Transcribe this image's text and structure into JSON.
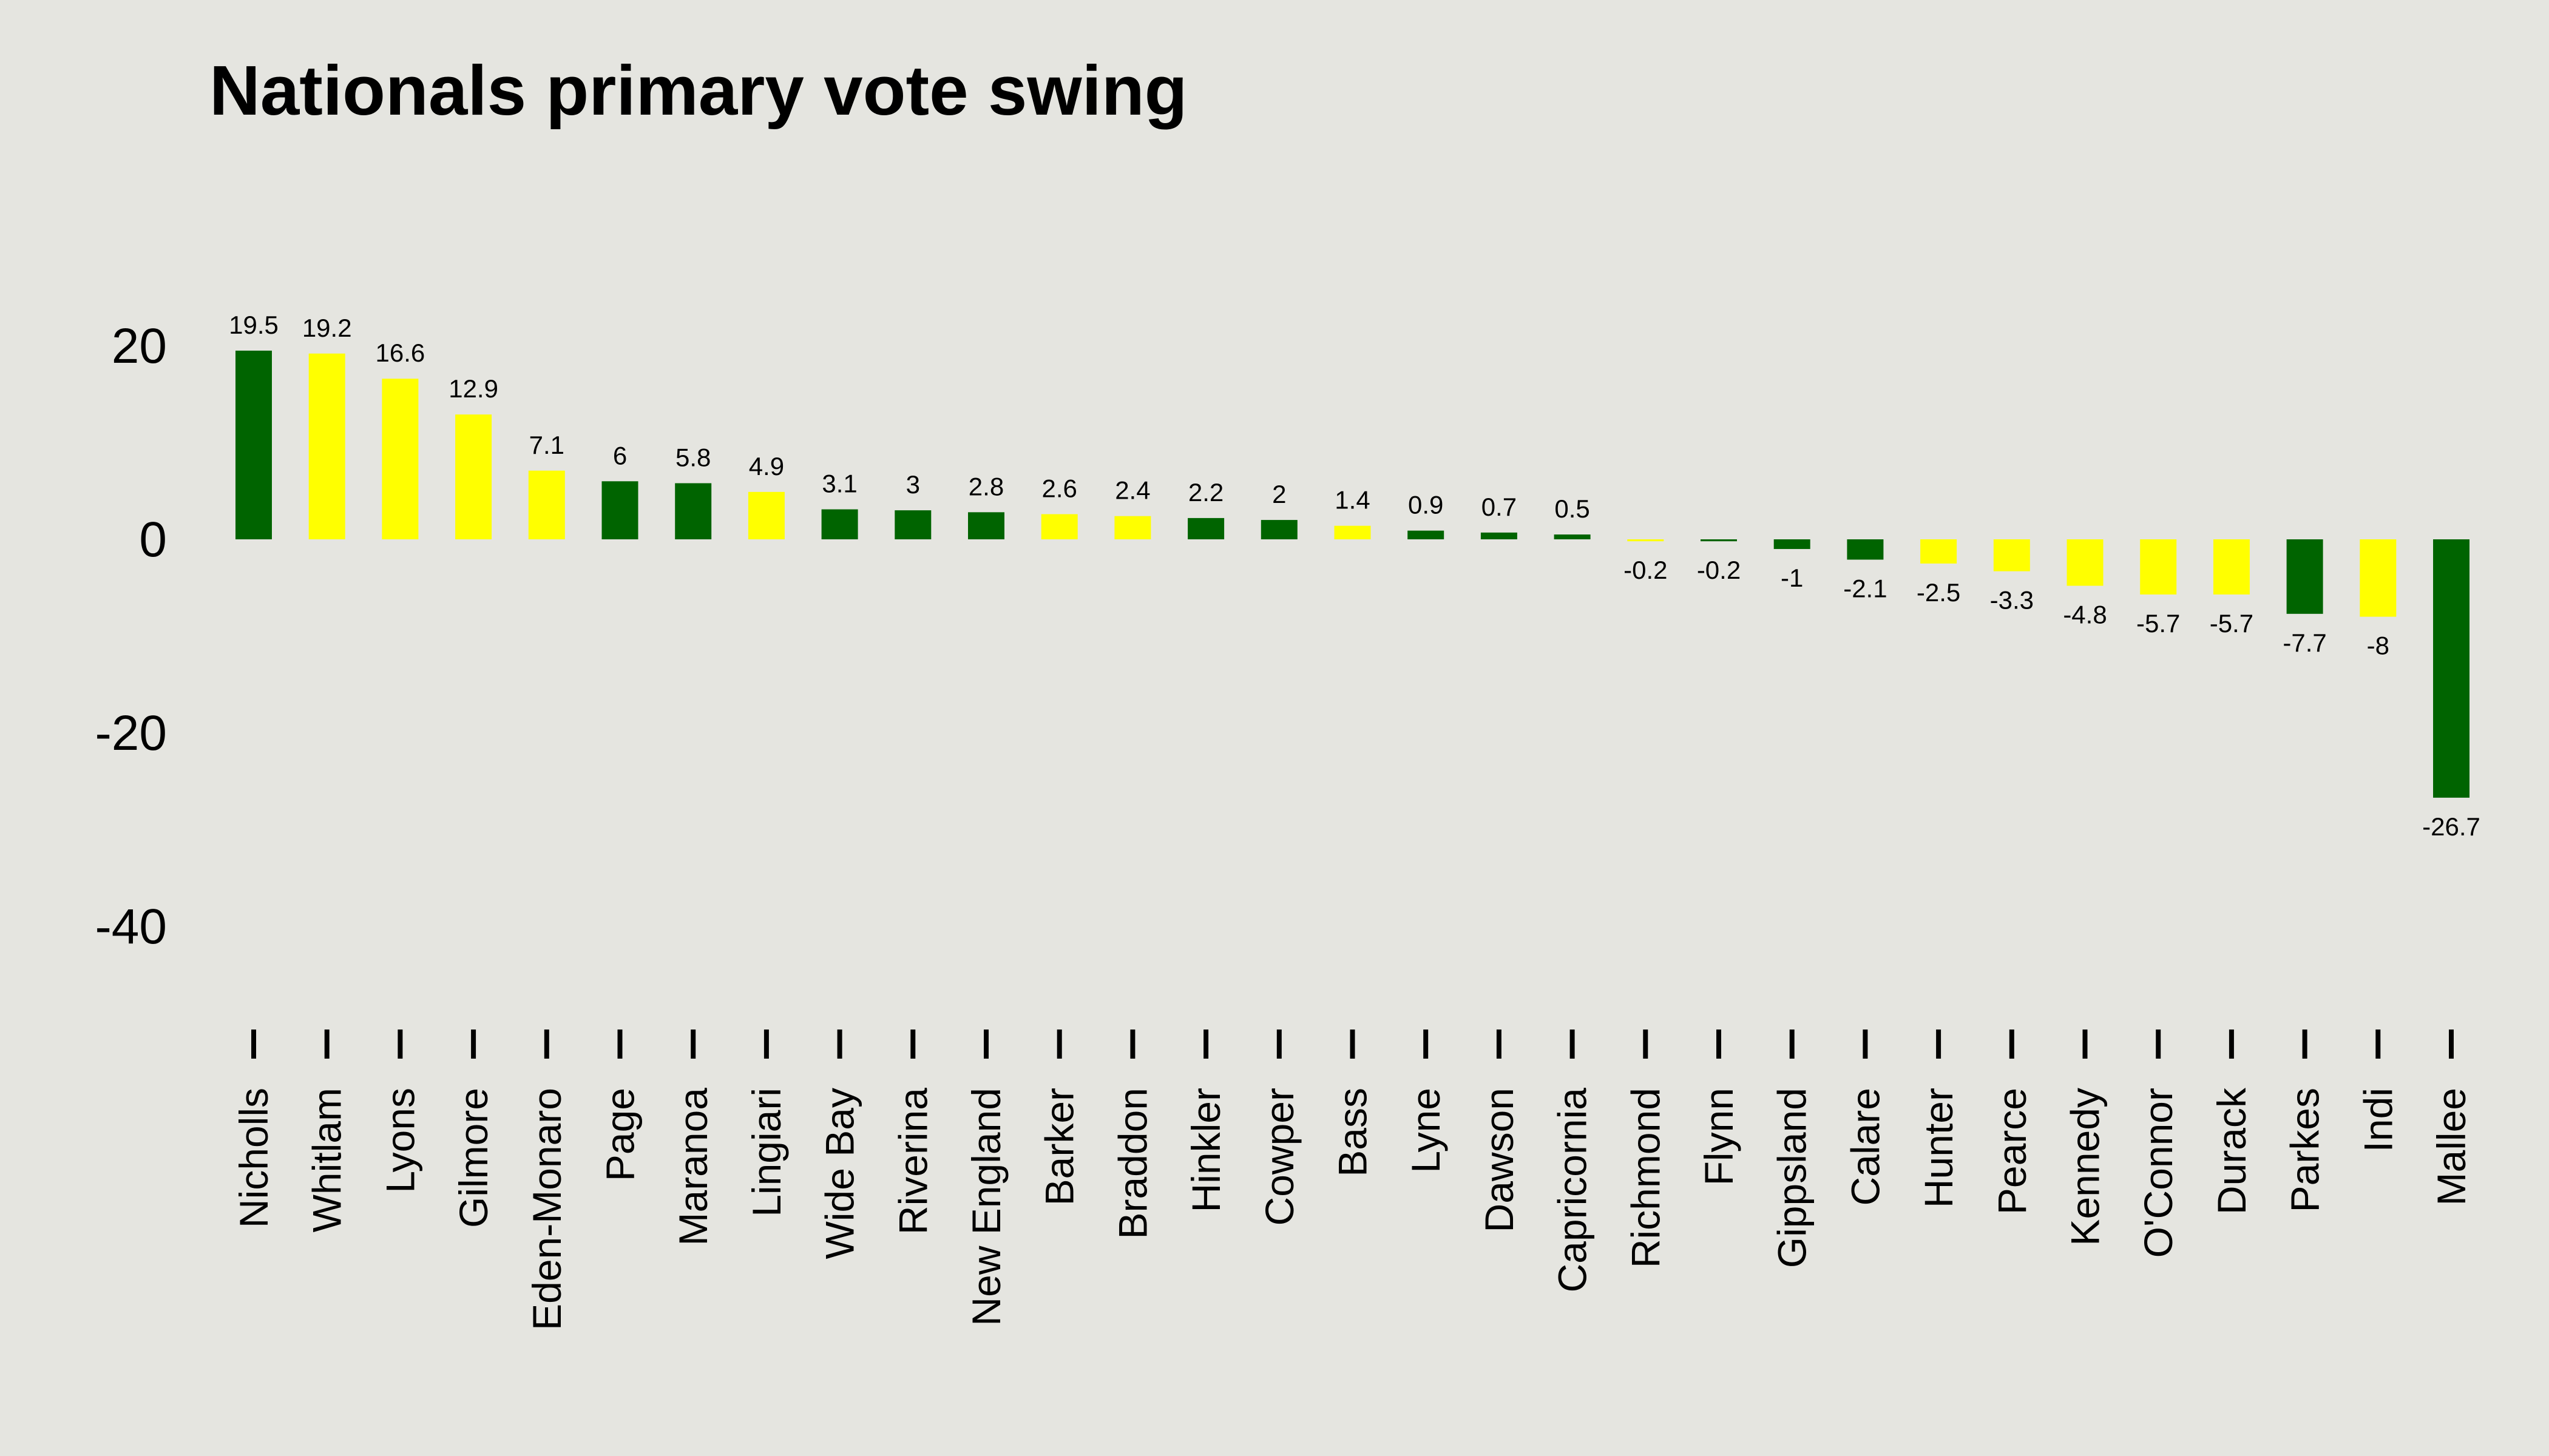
{
  "chart_data": {
    "type": "bar",
    "title": "Nationals primary vote swing",
    "xlabel": "",
    "ylabel": "",
    "ylim": [
      -50,
      30
    ],
    "yticks": [
      20,
      0,
      -20,
      -40
    ],
    "grid": false,
    "legend": "none",
    "colors": {
      "dark": "#006400",
      "light": "#FFFF00"
    },
    "categories": [
      "Nicholls",
      "Whitlam",
      "Lyons",
      "Gilmore",
      "Eden-Monaro",
      "Page",
      "Maranoa",
      "Lingiari",
      "Wide Bay",
      "Riverina",
      "New England",
      "Barker",
      "Braddon",
      "Hinkler",
      "Cowper",
      "Bass",
      "Lyne",
      "Dawson",
      "Capricornia",
      "Richmond",
      "Flynn",
      "Gippsland",
      "Calare",
      "Hunter",
      "Pearce",
      "Kennedy",
      "O'Connor",
      "Durack",
      "Parkes",
      "Indi",
      "Mallee"
    ],
    "values": [
      19.5,
      19.2,
      16.6,
      12.9,
      7.1,
      6,
      5.8,
      4.9,
      3.1,
      3,
      2.8,
      2.6,
      2.4,
      2.2,
      2,
      1.4,
      0.9,
      0.7,
      0.5,
      -0.2,
      -0.2,
      -1,
      -2.1,
      -2.5,
      -3.3,
      -4.8,
      -5.7,
      -5.7,
      -7.7,
      -8,
      -26.7
    ],
    "value_labels": [
      "19.5",
      "19.2",
      "16.6",
      "12.9",
      "7.1",
      "6",
      "5.8",
      "4.9",
      "3.1",
      "3",
      "2.8",
      "2.6",
      "2.4",
      "2.2",
      "2",
      "1.4",
      "0.9",
      "0.7",
      "0.5",
      "-0.2",
      "-0.2",
      "-1",
      "-2.1",
      "-2.5",
      "-3.3",
      "-4.8",
      "-5.7",
      "-5.7",
      "-7.7",
      "-8",
      "-26.7"
    ],
    "bar_colors": [
      "dark",
      "light",
      "light",
      "light",
      "light",
      "dark",
      "dark",
      "light",
      "dark",
      "dark",
      "dark",
      "light",
      "light",
      "dark",
      "dark",
      "light",
      "dark",
      "dark",
      "dark",
      "light",
      "dark",
      "dark",
      "dark",
      "light",
      "light",
      "light",
      "light",
      "light",
      "dark",
      "light",
      "dark"
    ]
  }
}
